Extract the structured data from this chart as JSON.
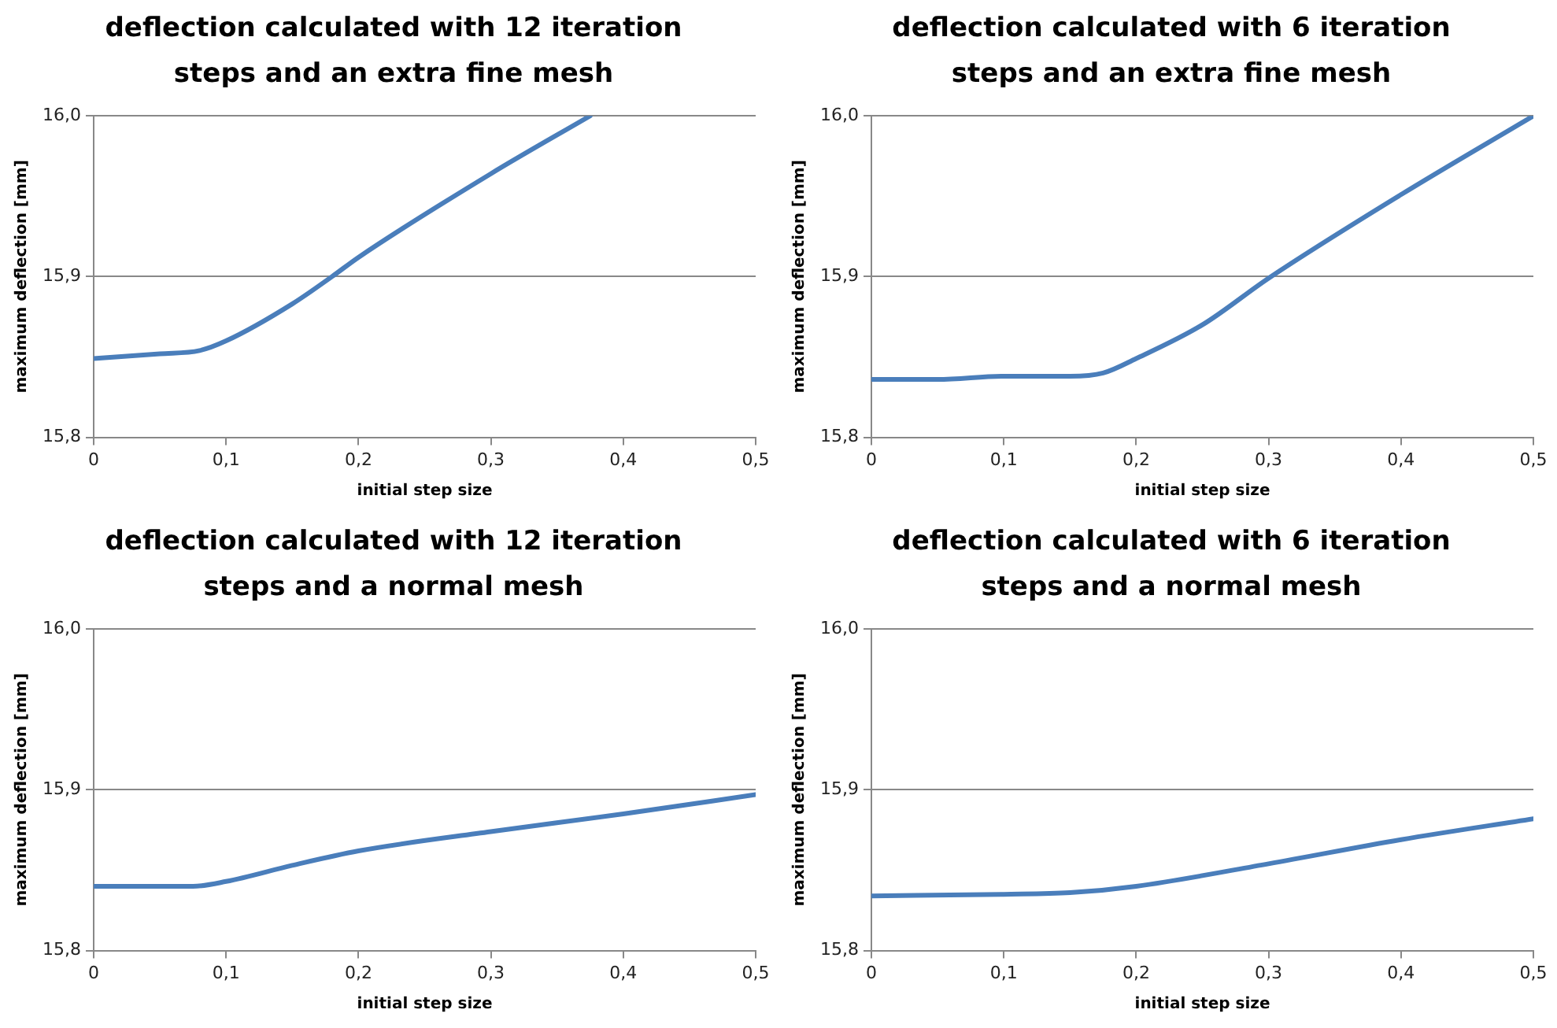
{
  "chart_data": [
    {
      "type": "line",
      "title": "deflection calculated with 12 iteration steps and an extra fine mesh",
      "xlabel": "initial step size",
      "ylabel": "maximum deflection [mm]",
      "x": [
        0,
        0.05,
        0.08,
        0.1,
        0.15,
        0.18,
        0.2,
        0.3,
        0.375
      ],
      "series": [
        {
          "color": "#4a7ebb",
          "values": [
            15.849,
            15.852,
            15.854,
            15.86,
            15.883,
            15.9,
            15.912,
            15.964,
            16.0
          ]
        }
      ],
      "xlim": [
        0,
        0.5
      ],
      "xticks": [
        {
          "value": 0,
          "label": "0"
        },
        {
          "value": 0.1,
          "label": "0,1"
        },
        {
          "value": 0.2,
          "label": "0,2"
        },
        {
          "value": 0.3,
          "label": "0,3"
        },
        {
          "value": 0.4,
          "label": "0,4"
        },
        {
          "value": 0.5,
          "label": "0,5"
        }
      ],
      "ylim": [
        15.8,
        16.0
      ],
      "yticks": [
        {
          "value": 15.8,
          "label": "15,8"
        },
        {
          "value": 15.9,
          "label": "15,9"
        },
        {
          "value": 16.0,
          "label": "16,0"
        }
      ],
      "grid": "y",
      "legend": false,
      "marker": "none",
      "line_style": "solid"
    },
    {
      "type": "line",
      "title": "deflection calculated with 6 iteration steps and an extra fine mesh",
      "xlabel": "initial step size",
      "ylabel": "maximum deflection [mm]",
      "x": [
        0,
        0.05,
        0.1,
        0.15,
        0.175,
        0.2,
        0.25,
        0.3,
        0.4,
        0.5
      ],
      "series": [
        {
          "color": "#4a7ebb",
          "values": [
            15.836,
            15.836,
            15.838,
            15.838,
            15.84,
            15.849,
            15.87,
            15.899,
            15.951,
            16.0
          ]
        }
      ],
      "xlim": [
        0,
        0.5
      ],
      "xticks": [
        {
          "value": 0,
          "label": "0"
        },
        {
          "value": 0.1,
          "label": "0,1"
        },
        {
          "value": 0.2,
          "label": "0,2"
        },
        {
          "value": 0.3,
          "label": "0,3"
        },
        {
          "value": 0.4,
          "label": "0,4"
        },
        {
          "value": 0.5,
          "label": "0,5"
        }
      ],
      "ylim": [
        15.8,
        16.0
      ],
      "yticks": [
        {
          "value": 15.8,
          "label": "15,8"
        },
        {
          "value": 15.9,
          "label": "15,9"
        },
        {
          "value": 16.0,
          "label": "16,0"
        }
      ],
      "grid": "y",
      "legend": false,
      "marker": "none",
      "line_style": "solid"
    },
    {
      "type": "line",
      "title": "deflection calculated with 12 iteration steps and a normal mesh",
      "xlabel": "initial step size",
      "ylabel": "maximum deflection [mm]",
      "x": [
        0,
        0.05,
        0.075,
        0.1,
        0.15,
        0.2,
        0.3,
        0.4,
        0.5
      ],
      "series": [
        {
          "color": "#4a7ebb",
          "values": [
            15.84,
            15.84,
            15.84,
            15.843,
            15.853,
            15.862,
            15.874,
            15.885,
            15.897
          ]
        }
      ],
      "xlim": [
        0,
        0.5
      ],
      "xticks": [
        {
          "value": 0,
          "label": "0"
        },
        {
          "value": 0.1,
          "label": "0,1"
        },
        {
          "value": 0.2,
          "label": "0,2"
        },
        {
          "value": 0.3,
          "label": "0,3"
        },
        {
          "value": 0.4,
          "label": "0,4"
        },
        {
          "value": 0.5,
          "label": "0,5"
        }
      ],
      "ylim": [
        15.8,
        16.0
      ],
      "yticks": [
        {
          "value": 15.8,
          "label": "15,8"
        },
        {
          "value": 15.9,
          "label": "15,9"
        },
        {
          "value": 16.0,
          "label": "16,0"
        }
      ],
      "grid": "y",
      "legend": false,
      "marker": "none",
      "line_style": "solid"
    },
    {
      "type": "line",
      "title": "deflection calculated with 6 iteration steps and a normal mesh",
      "xlabel": "initial step size",
      "ylabel": "maximum deflection [mm]",
      "x": [
        0,
        0.1,
        0.15,
        0.2,
        0.3,
        0.4,
        0.5
      ],
      "series": [
        {
          "color": "#4a7ebb",
          "values": [
            15.834,
            15.835,
            15.836,
            15.84,
            15.854,
            15.869,
            15.882
          ]
        }
      ],
      "xlim": [
        0,
        0.5
      ],
      "xticks": [
        {
          "value": 0,
          "label": "0"
        },
        {
          "value": 0.1,
          "label": "0,1"
        },
        {
          "value": 0.2,
          "label": "0,2"
        },
        {
          "value": 0.3,
          "label": "0,3"
        },
        {
          "value": 0.4,
          "label": "0,4"
        },
        {
          "value": 0.5,
          "label": "0,5"
        }
      ],
      "ylim": [
        15.8,
        16.0
      ],
      "yticks": [
        {
          "value": 15.8,
          "label": "15,8"
        },
        {
          "value": 15.9,
          "label": "15,9"
        },
        {
          "value": 16.0,
          "label": "16,0"
        }
      ],
      "grid": "y",
      "legend": false,
      "marker": "none",
      "line_style": "solid"
    }
  ]
}
